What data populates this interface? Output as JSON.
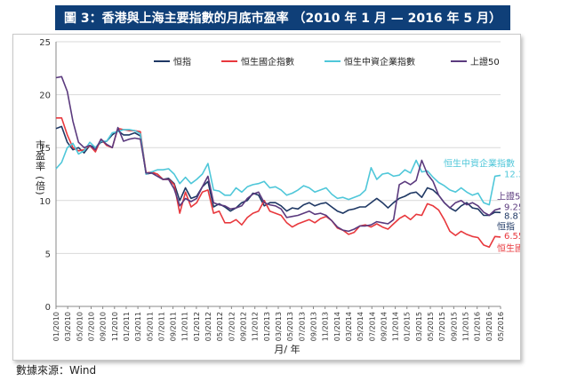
{
  "title": "圖 3：香港與上海主要指數的月底市盈率 （2010 年 1 月 — 2016 年 5 月）",
  "source": "數據來源：Wind",
  "chart_data": {
    "type": "line",
    "xlabel": "月/ 年",
    "ylabel": "市盈率 (倍)",
    "ylim": [
      0,
      25
    ],
    "y_ticks": [
      "0",
      "5",
      "10",
      "15",
      "20",
      "25"
    ],
    "x_tick_labels": [
      "01/2010",
      "03/2010",
      "05/2010",
      "07/2010",
      "09/2010",
      "11/2010",
      "01/2011",
      "03/2011",
      "05/2011",
      "07/2011",
      "09/2011",
      "11/2011",
      "01/2012",
      "03/2012",
      "05/2012",
      "07/2012",
      "09/2012",
      "11/2012",
      "01/2013",
      "03/2013",
      "05/2013",
      "07/2013",
      "09/2013",
      "11/2013",
      "01/2014",
      "03/2014",
      "05/2014",
      "07/2014",
      "09/2014",
      "11/2014",
      "01/2015",
      "03/2015",
      "05/2015",
      "07/2015",
      "09/2015",
      "11/2015",
      "01/2016",
      "03/2016",
      "05/2016"
    ],
    "legend_position": "top",
    "series": [
      {
        "name": "恒指",
        "color": "#1f3864",
        "end_label": "恒指",
        "end_value_label": "8.87",
        "values": [
          16.8,
          17,
          15.5,
          14.8,
          15,
          14.5,
          15.2,
          15,
          15.5,
          15.6,
          16.2,
          16.6,
          16.2,
          16.2,
          16.4,
          16.1,
          12.5,
          12.6,
          12.5,
          12,
          12.1,
          11.6,
          10,
          11.2,
          10.2,
          10.4,
          11.3,
          11.8,
          9.4,
          9.7,
          9.4,
          9,
          9.3,
          9.8,
          10,
          10.7,
          10.5,
          9.5,
          9.8,
          9.8,
          9.5,
          9,
          9.3,
          9.2,
          9.6,
          9.8,
          9.5,
          9.7,
          9.8,
          9.4,
          9,
          8.8,
          9.1,
          9.2,
          9.4,
          9.4,
          9.8,
          10.2,
          9.8,
          9.3,
          9.8,
          10.2,
          10.4,
          10.7,
          10.8,
          10.3,
          11.2,
          11,
          10.5,
          9.8,
          9.3,
          9,
          9.5,
          9.8,
          9.3,
          9.2,
          8.6,
          8.6,
          8.9,
          8.87
        ]
      },
      {
        "name": "恒生國企指數",
        "color": "#e8383d",
        "end_label": "恒生國企指數",
        "end_value_label": "6.55",
        "values": [
          17.8,
          17.8,
          16.2,
          15,
          14.7,
          14.8,
          15.2,
          14.6,
          15.8,
          15.2,
          15,
          16.8,
          16.7,
          16.6,
          16.6,
          16.5,
          12.6,
          12.7,
          12.5,
          12,
          12,
          11.5,
          8.8,
          10.8,
          9.4,
          9.8,
          10.8,
          11,
          8.8,
          9,
          7.9,
          7.9,
          8.2,
          7.7,
          8.4,
          8.8,
          9,
          10,
          9,
          8.8,
          8.6,
          7.9,
          7.5,
          7.8,
          8,
          8.2,
          7.9,
          8.3,
          8.5,
          8.1,
          7.4,
          7.2,
          6.8,
          7,
          7.6,
          7.7,
          7.5,
          7.8,
          7.5,
          7.3,
          7.8,
          8.3,
          8.6,
          8.2,
          8.7,
          8.6,
          9.7,
          9.5,
          9.1,
          8.2,
          7.1,
          6.7,
          7.1,
          6.8,
          6.6,
          6.5,
          5.8,
          5.6,
          6.6,
          6.55
        ]
      },
      {
        "name": "恒生中資企業指數",
        "color": "#4fc7d9",
        "end_label": "恒生中資企業指數",
        "end_value_label": "12.38",
        "values": [
          13,
          13.6,
          15,
          15.4,
          14.4,
          14.7,
          15.5,
          15,
          15.6,
          15.6,
          16.4,
          16.5,
          16.7,
          16.7,
          16.6,
          16.3,
          12.5,
          12.7,
          12.9,
          12.9,
          13,
          12.5,
          11.6,
          12.2,
          11.6,
          12,
          12.5,
          13.5,
          11,
          10.9,
          10.5,
          10.5,
          11.2,
          10.8,
          11.3,
          11.5,
          11.6,
          11.8,
          11.2,
          11.3,
          11,
          10.5,
          10.7,
          11,
          11.4,
          11.2,
          10.8,
          11,
          11.2,
          10.6,
          10.2,
          10.3,
          10.1,
          10.3,
          10.5,
          11,
          13.1,
          12,
          12.5,
          12.6,
          12.3,
          12.4,
          12.9,
          12.6,
          13.8,
          12.7,
          12.8,
          12.2,
          11.7,
          11.4,
          11,
          10.8,
          11.2,
          10.8,
          10.5,
          10.7,
          9.8,
          9.6,
          12.3,
          12.38
        ]
      },
      {
        "name": "上證50",
        "color": "#5b3a7e",
        "end_label": "上證50",
        "end_value_label": "9.25",
        "values": [
          21.6,
          21.7,
          20.3,
          17.5,
          15.5,
          15,
          15.2,
          14.8,
          15.8,
          15.3,
          15,
          16.9,
          15.6,
          15.8,
          15.9,
          15.8,
          12.6,
          12.6,
          12.3,
          12,
          12,
          11.1,
          9.5,
          10.2,
          9.9,
          10.2,
          11.3,
          12.3,
          9.8,
          9.6,
          9.5,
          9.2,
          9.3,
          9.5,
          10.2,
          10.6,
          10.8,
          9.8,
          9.6,
          9.5,
          9.2,
          8.4,
          8.5,
          8.6,
          8.8,
          9,
          8.7,
          8.8,
          8.6,
          8.1,
          7.5,
          7.2,
          7.1,
          7.3,
          7.6,
          7.6,
          7.7,
          8,
          7.9,
          7.8,
          8.2,
          11.5,
          11.8,
          11.5,
          11.9,
          13.8,
          12.5,
          11.8,
          10.5,
          9.8,
          9.3,
          9.8,
          10,
          9.6,
          9.8,
          9.5,
          8.9,
          8.6,
          9.1,
          9.25
        ]
      }
    ]
  }
}
